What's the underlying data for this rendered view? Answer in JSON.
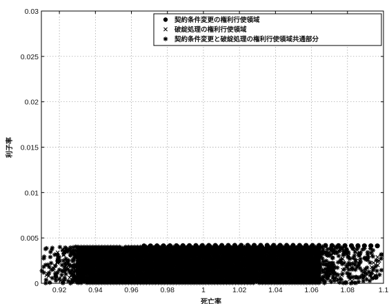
{
  "chart_data": {
    "type": "scatter",
    "title": "",
    "xlabel": "死亡率",
    "ylabel": "利子率",
    "xlim": [
      0.91,
      1.1
    ],
    "ylim": [
      0,
      0.03
    ],
    "x_ticks": [
      0.92,
      0.94,
      0.96,
      0.98,
      1,
      1.02,
      1.04,
      1.06,
      1.08,
      1.1
    ],
    "x_tick_labels": [
      "0.92",
      "0.94",
      "0.96",
      "0.98",
      "1",
      "1.02",
      "1.04",
      "1.06",
      "1.08",
      "1.1"
    ],
    "y_ticks": [
      0,
      0.005,
      0.01,
      0.015,
      0.02,
      0.025,
      0.03
    ],
    "y_tick_labels": [
      "0",
      "0.005",
      "0.01",
      "0.015",
      "0.02",
      "0.025",
      "0.03"
    ],
    "grid": true,
    "legend_position": "top-right",
    "series": [
      {
        "name": "契約条件変更の権利行使領域",
        "marker": "filled-circle",
        "color": "#000000",
        "x_range": [
          0.967,
          1.1
        ],
        "top_boundary_points": [
          [
            0.967,
            0.0041
          ],
          [
            0.99,
            0.0042
          ],
          [
            1.0,
            0.0042
          ],
          [
            1.02,
            0.0042
          ],
          [
            1.04,
            0.0042
          ],
          [
            1.06,
            0.0041
          ],
          [
            1.08,
            0.0041
          ],
          [
            1.1,
            0.0042
          ]
        ]
      },
      {
        "name": "破綻処理の権利行使領域",
        "marker": "x",
        "color": "#000000",
        "x_range": [
          0.91,
          1.1
        ],
        "y_range": [
          0.0,
          0.004
        ]
      },
      {
        "name": "契約条件変更と破綻処理の権利行使領域共通部分",
        "marker": "asterisk",
        "color": "#000000",
        "x_range": [
          0.91,
          1.1
        ],
        "y_range": [
          0.0,
          0.0042
        ],
        "dense_band": [
          0.93,
          1.065
        ]
      }
    ]
  }
}
